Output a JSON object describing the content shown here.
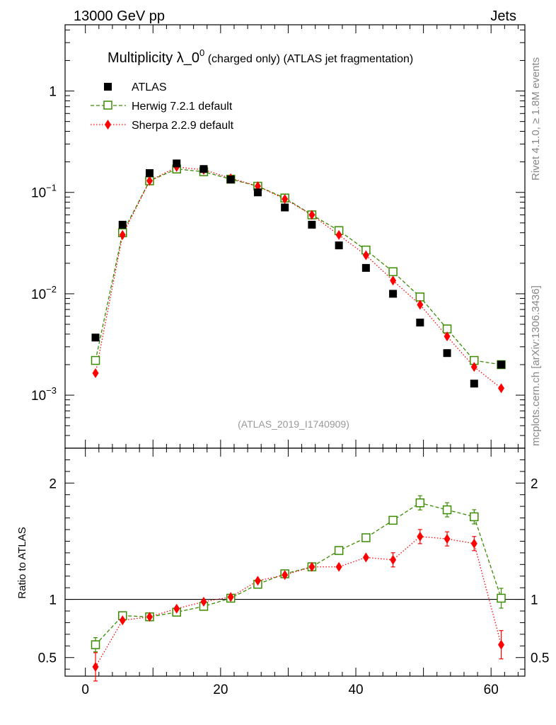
{
  "header": {
    "left": "13000 GeV pp",
    "right": "Jets"
  },
  "title": {
    "main": "Multiplicity λ_0",
    "sup": "0",
    "sub1": " (charged only)",
    "sub2": " (ATLAS jet fragmentation)"
  },
  "side_labels": {
    "top": "Rivet 4.1.0, ≥ 1.8M events",
    "bottom": "mcplots.cern.ch [arXiv:1306.3436]"
  },
  "analysis_id": "(ATLAS_2019_I1740909)",
  "ratio_label": "Ratio to ATLAS",
  "colors": {
    "atlas": "#000000",
    "herwig": "#3a8c00",
    "sherpa": "#ff0000"
  },
  "chart_data": [
    {
      "type": "scatter",
      "panel": "main",
      "yscale": "log",
      "xlim": [
        -3,
        65
      ],
      "ylim": [
        0.0003,
        4.5
      ],
      "xlabel": "",
      "ylabel": "",
      "legend": "top-left",
      "y_tick_labels": [
        {
          "base": "1",
          "exp": "",
          "value": 1
        },
        {
          "base": "10",
          "exp": "−1",
          "value": 0.1
        },
        {
          "base": "10",
          "exp": "−2",
          "value": 0.01
        },
        {
          "base": "10",
          "exp": "−3",
          "value": 0.001
        }
      ],
      "x": [
        1.5,
        5.5,
        9.5,
        13.5,
        17.5,
        21.5,
        25.5,
        29.5,
        33.5,
        37.5,
        41.5,
        45.5,
        49.5,
        53.5,
        57.5,
        61.5
      ],
      "series": [
        {
          "name": "ATLAS",
          "values": [
            0.0037,
            0.048,
            0.155,
            0.193,
            0.17,
            0.134,
            0.1,
            0.071,
            0.048,
            0.03,
            0.018,
            0.01,
            0.0052,
            0.0026,
            0.0013,
            0.002
          ]
        },
        {
          "name": "Herwig 7.2.1 default",
          "values": [
            0.0022,
            0.04,
            0.13,
            0.17,
            0.16,
            0.135,
            0.115,
            0.088,
            0.06,
            0.042,
            0.027,
            0.0165,
            0.0093,
            0.0045,
            0.0022,
            0.002
          ]
        },
        {
          "name": "Sherpa 2.2.9 default",
          "values": [
            0.00165,
            0.038,
            0.13,
            0.178,
            0.167,
            0.138,
            0.115,
            0.086,
            0.06,
            0.038,
            0.024,
            0.0135,
            0.0078,
            0.0038,
            0.0019,
            0.00117
          ]
        }
      ]
    },
    {
      "type": "line",
      "panel": "ratio",
      "xlim": [
        -3,
        65
      ],
      "ylim": [
        0.34,
        2.3
      ],
      "ylabel": "Ratio to ATLAS",
      "x_tick_labels": [
        "0",
        "20",
        "40",
        "60"
      ],
      "y_tick_labels": [
        "0.5",
        "1",
        "2"
      ],
      "x": [
        1.5,
        5.5,
        9.5,
        13.5,
        17.5,
        21.5,
        25.5,
        29.5,
        33.5,
        37.5,
        41.5,
        45.5,
        49.5,
        53.5,
        57.5,
        61.5
      ],
      "reference": 1,
      "series": [
        {
          "name": "Herwig 7.2.1 default",
          "values": [
            0.61,
            0.86,
            0.85,
            0.89,
            0.94,
            1.01,
            1.13,
            1.22,
            1.28,
            1.42,
            1.53,
            1.68,
            1.83,
            1.77,
            1.71,
            1.01
          ]
        },
        {
          "name": "Sherpa 2.2.9 default",
          "values": [
            0.42,
            0.82,
            0.85,
            0.92,
            0.98,
            1.02,
            1.16,
            1.21,
            1.28,
            1.28,
            1.36,
            1.34,
            1.54,
            1.52,
            1.48,
            0.61
          ]
        }
      ]
    }
  ]
}
